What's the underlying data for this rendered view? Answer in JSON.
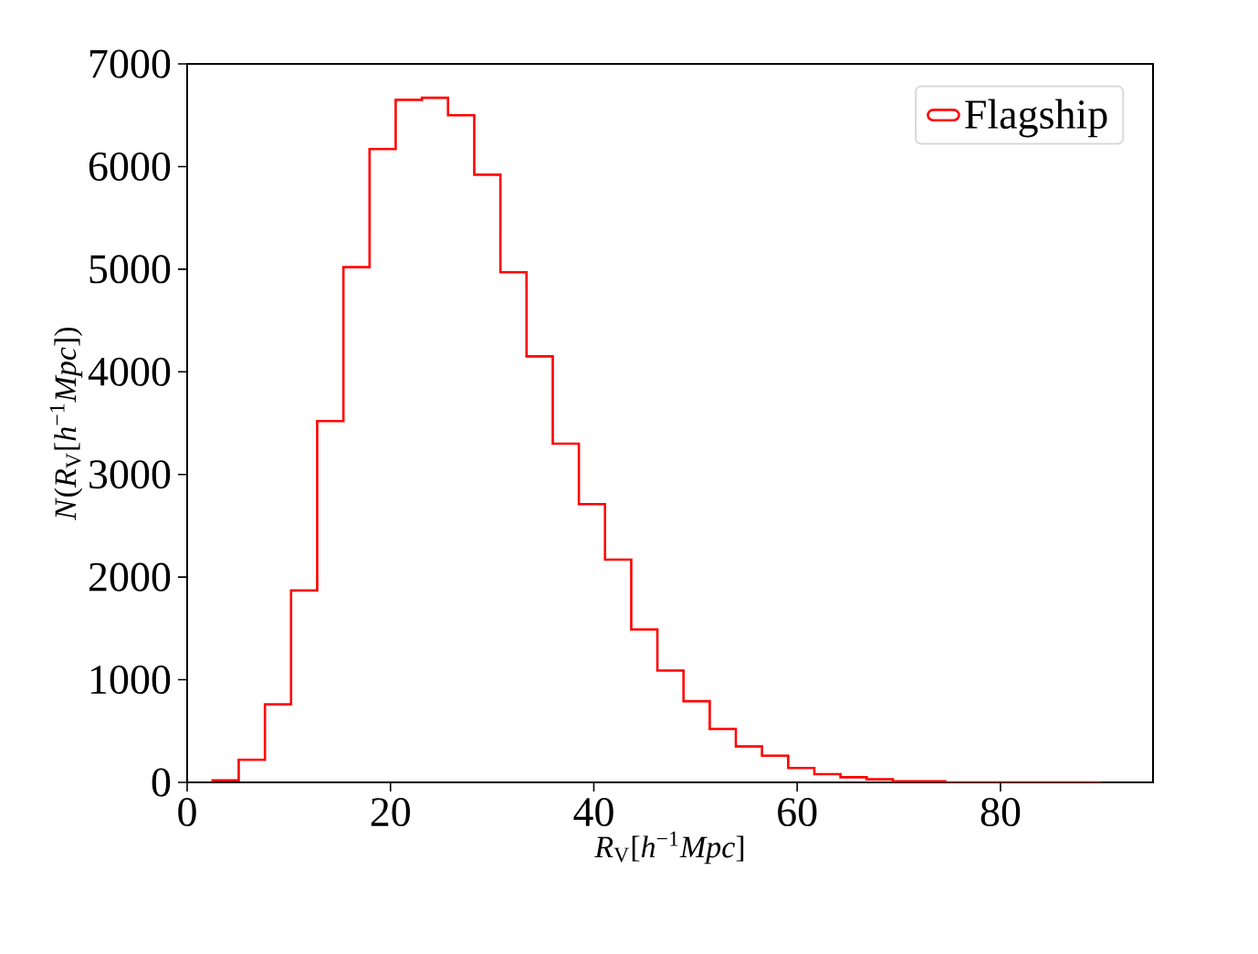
{
  "chart_data": {
    "type": "histogram",
    "xlabel": "*R*$_{V}$[*h*$^{−1}$*Mpc*]",
    "ylabel": "*N*(*R*$_{V}$[*h*$^{−1}$*Mpc*])",
    "bins": [
      2.5,
      5.07,
      7.65,
      10.22,
      12.79,
      15.37,
      17.94,
      20.51,
      23.09,
      25.66,
      28.24,
      30.81,
      33.38,
      35.96,
      38.53,
      41.1,
      43.68,
      46.25,
      48.82,
      51.4,
      53.97,
      56.54,
      59.12,
      61.69,
      64.26,
      66.84,
      69.41,
      71.99,
      74.56,
      77.13,
      79.71,
      82.28,
      84.85,
      87.43,
      90.0
    ],
    "series": [
      {
        "name": "Flagship",
        "color": "#ff0000",
        "values": [
          20,
          220,
          760,
          1870,
          3520,
          5020,
          6170,
          6650,
          6670,
          6500,
          5920,
          4970,
          4150,
          3300,
          2710,
          2170,
          1490,
          1090,
          790,
          520,
          350,
          260,
          140,
          80,
          50,
          30,
          10,
          10,
          0,
          0,
          0,
          0,
          0,
          0
        ]
      }
    ],
    "xlim": [
      0,
      95
    ],
    "ylim": [
      0,
      7000
    ],
    "xticks": [
      0,
      20,
      40,
      60,
      80
    ],
    "yticks": [
      0,
      1000,
      2000,
      3000,
      4000,
      5000,
      6000,
      7000
    ],
    "grid": false,
    "legend": "top right"
  }
}
